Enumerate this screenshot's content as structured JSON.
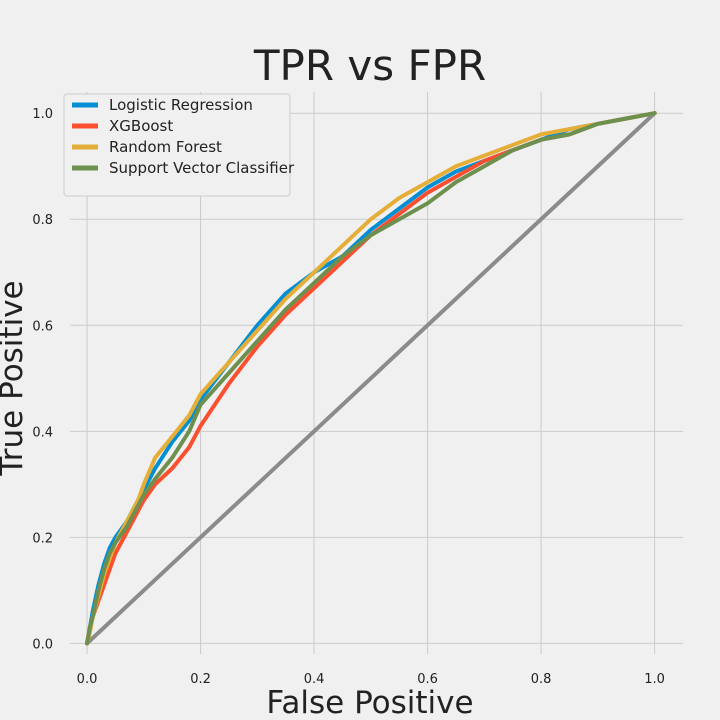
{
  "chart_data": {
    "type": "line",
    "title": "TPR vs FPR",
    "xlabel": "False Positive",
    "ylabel": "True Positive",
    "xlim": [
      -0.03,
      1.05
    ],
    "ylim": [
      -0.02,
      1.04
    ],
    "xticks": [
      "0.0",
      "0.2",
      "0.4",
      "0.6",
      "0.8",
      "1.0"
    ],
    "yticks": [
      "0.0",
      "0.2",
      "0.4",
      "0.6",
      "0.8",
      "1.0"
    ],
    "grid": true,
    "legend_position": "top-left",
    "diagonal": {
      "x": [
        0,
        1
      ],
      "y": [
        0,
        1
      ],
      "color": "#8b8b8b"
    },
    "series": [
      {
        "name": "Logistic Regression",
        "color": "#008fd5",
        "x": [
          0,
          0.005,
          0.01,
          0.02,
          0.03,
          0.04,
          0.05,
          0.07,
          0.09,
          0.1,
          0.12,
          0.15,
          0.18,
          0.2,
          0.25,
          0.3,
          0.35,
          0.4,
          0.45,
          0.5,
          0.55,
          0.6,
          0.65,
          0.7,
          0.75,
          0.8,
          0.85,
          0.9,
          0.95,
          1.0
        ],
        "y": [
          0,
          0.03,
          0.06,
          0.11,
          0.15,
          0.18,
          0.2,
          0.23,
          0.27,
          0.29,
          0.33,
          0.38,
          0.42,
          0.46,
          0.53,
          0.6,
          0.66,
          0.7,
          0.73,
          0.78,
          0.82,
          0.86,
          0.89,
          0.91,
          0.93,
          0.95,
          0.97,
          0.98,
          0.99,
          1.0
        ]
      },
      {
        "name": "XGBoost",
        "color": "#fc4f30",
        "x": [
          0,
          0.005,
          0.01,
          0.02,
          0.03,
          0.04,
          0.05,
          0.07,
          0.09,
          0.1,
          0.12,
          0.15,
          0.18,
          0.2,
          0.25,
          0.3,
          0.35,
          0.4,
          0.45,
          0.5,
          0.55,
          0.6,
          0.65,
          0.7,
          0.75,
          0.8,
          0.85,
          0.9,
          0.95,
          1.0
        ],
        "y": [
          0,
          0.03,
          0.05,
          0.08,
          0.11,
          0.14,
          0.17,
          0.21,
          0.25,
          0.27,
          0.3,
          0.33,
          0.37,
          0.41,
          0.49,
          0.56,
          0.62,
          0.67,
          0.72,
          0.77,
          0.81,
          0.85,
          0.88,
          0.91,
          0.93,
          0.95,
          0.96,
          0.98,
          0.99,
          1.0
        ]
      },
      {
        "name": "Random Forest",
        "color": "#e5ae38",
        "x": [
          0,
          0.005,
          0.01,
          0.02,
          0.03,
          0.04,
          0.05,
          0.07,
          0.09,
          0.1,
          0.12,
          0.15,
          0.18,
          0.2,
          0.25,
          0.3,
          0.35,
          0.4,
          0.45,
          0.5,
          0.55,
          0.6,
          0.65,
          0.7,
          0.75,
          0.8,
          0.85,
          0.9,
          0.95,
          1.0
        ],
        "y": [
          0,
          0.02,
          0.05,
          0.09,
          0.13,
          0.16,
          0.19,
          0.23,
          0.27,
          0.3,
          0.35,
          0.39,
          0.43,
          0.47,
          0.53,
          0.59,
          0.65,
          0.7,
          0.75,
          0.8,
          0.84,
          0.87,
          0.9,
          0.92,
          0.94,
          0.96,
          0.97,
          0.98,
          0.99,
          1.0
        ]
      },
      {
        "name": "Support Vector Classifier",
        "color": "#6d904f",
        "x": [
          0,
          0.005,
          0.01,
          0.02,
          0.03,
          0.04,
          0.05,
          0.07,
          0.09,
          0.1,
          0.12,
          0.15,
          0.18,
          0.2,
          0.25,
          0.3,
          0.35,
          0.4,
          0.45,
          0.5,
          0.55,
          0.6,
          0.65,
          0.7,
          0.75,
          0.8,
          0.85,
          0.9,
          0.95,
          1.0
        ],
        "y": [
          0,
          0.03,
          0.05,
          0.1,
          0.14,
          0.17,
          0.19,
          0.22,
          0.26,
          0.28,
          0.31,
          0.35,
          0.4,
          0.45,
          0.51,
          0.57,
          0.63,
          0.68,
          0.73,
          0.77,
          0.8,
          0.83,
          0.87,
          0.9,
          0.93,
          0.95,
          0.96,
          0.98,
          0.99,
          1.0
        ]
      }
    ]
  }
}
